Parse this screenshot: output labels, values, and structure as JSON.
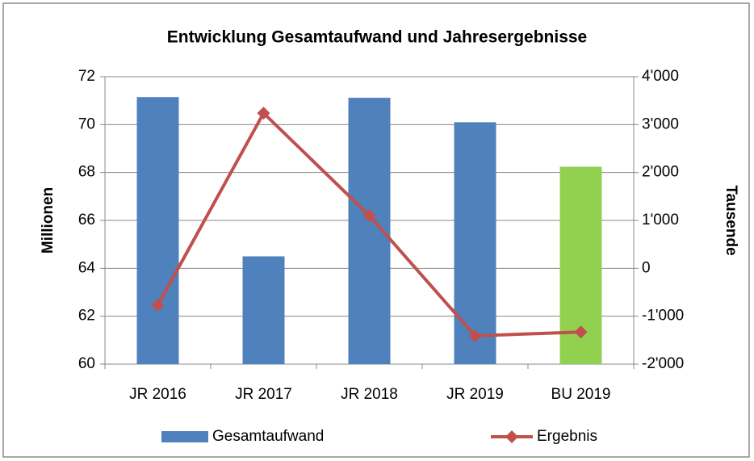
{
  "chart_data": {
    "type": "bar-line",
    "title": "Entwicklung Gesamtaufwand und Jahresergebnisse",
    "ylabel": "Millionen",
    "y2label": "Tausende",
    "categories": [
      "JR 2016",
      "JR 2017",
      "JR 2018",
      "JR 2019",
      "BU 2019"
    ],
    "series": [
      {
        "name": "Gesamtaufwand",
        "type": "bar",
        "color": "#4f81bd",
        "colors": [
          "#4f81bd",
          "#4f81bd",
          "#4f81bd",
          "#4f81bd",
          "#92d050"
        ],
        "values": [
          71.15,
          64.5,
          71.12,
          70.1,
          68.24
        ]
      },
      {
        "name": "Ergebnis",
        "type": "line",
        "axis": "y2",
        "color": "#c0504d",
        "values": [
          -770,
          3240,
          1100,
          -1410,
          -1330
        ]
      }
    ],
    "ylim": [
      60,
      72
    ],
    "yticks": [
      60,
      62,
      64,
      66,
      68,
      70,
      72
    ],
    "y2lim": [
      -2000,
      4000
    ],
    "y2ticks": [
      {
        "value": -2000,
        "label": "-2'000"
      },
      {
        "value": -1000,
        "label": "-1'000"
      },
      0,
      {
        "value": 1000,
        "label": "1'000"
      },
      {
        "value": 2000,
        "label": "2'000"
      },
      {
        "value": 3000,
        "label": "3'000"
      },
      {
        "value": 4000,
        "label": "4'000"
      }
    ],
    "grid": true,
    "legend": "bottom"
  }
}
